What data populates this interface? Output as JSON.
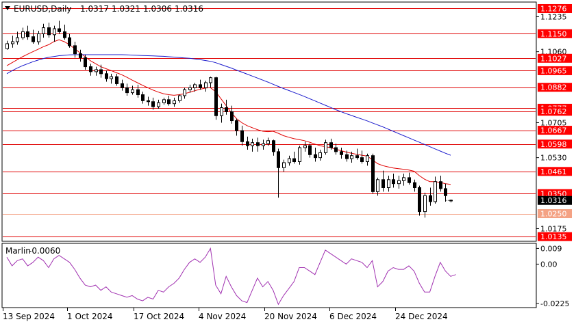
{
  "header": {
    "symbol": "EURUSD,Daily",
    "open": "1.0317",
    "high": "1.0321",
    "low": "1.0306",
    "close": "1.0316"
  },
  "indicator": {
    "name": "Marlin",
    "value": "-0.0060",
    "ticks": [
      "0.009",
      "0.00",
      "-0.0225"
    ]
  },
  "colors": {
    "background": "#ffffff",
    "level_line": "#e00000",
    "level_label_bg": "#ff0000",
    "level_label_light_bg": "#f4a284",
    "ma_fast": "#e00000",
    "ma_slow": "#1a1acc",
    "marlin_line": "#a030b0",
    "candle": "#000000",
    "price_label_bg": "#000000"
  },
  "chart_data": [
    {
      "type": "candlestick",
      "title": "EURUSD,Daily",
      "ylim": [
        1.0115,
        1.1305
      ],
      "x_tick_labels": [
        "13 Sep 2024",
        "1 Oct 2024",
        "17 Oct 2024",
        "4 Nov 2024",
        "20 Nov 2024",
        "6 Dec 2024",
        "24 Dec 2024"
      ],
      "y_tick_labels": [
        "1.1235",
        "1.1060",
        "1.0705",
        "1.0530",
        "1.0175"
      ],
      "levels_labels": [
        "1.1276",
        "1.1150",
        "1.1027",
        "1.0965",
        "1.0882",
        "1.0777",
        "1.0762",
        "1.0667",
        "1.0598",
        "1.0461",
        "1.0350",
        "1.0250",
        "1.0135"
      ],
      "levels": [
        {
          "value": 1.1276,
          "label": "1.1276",
          "style": "red"
        },
        {
          "value": 1.115,
          "label": "1.1150",
          "style": "red"
        },
        {
          "value": 1.1027,
          "label": "1.1027",
          "style": "red"
        },
        {
          "value": 1.0965,
          "label": "1.0965",
          "style": "red"
        },
        {
          "value": 1.0882,
          "label": "1.0882",
          "style": "red"
        },
        {
          "value": 1.0777,
          "label": "1.0777",
          "style": "red"
        },
        {
          "value": 1.0762,
          "label": "1.0762",
          "style": "red"
        },
        {
          "value": 1.0667,
          "label": "1.0667",
          "style": "red"
        },
        {
          "value": 1.0598,
          "label": "1.0598",
          "style": "red"
        },
        {
          "value": 1.0461,
          "label": "1.0461",
          "style": "red"
        },
        {
          "value": 1.035,
          "label": "1.0350",
          "style": "red"
        },
        {
          "value": 1.025,
          "label": "1.0250",
          "style": "light"
        },
        {
          "value": 1.0135,
          "label": "1.0135",
          "style": "red"
        }
      ],
      "current_price": 1.0316,
      "current_price_label": "1.0316",
      "ohlc": [
        [
          1.1075,
          1.1115,
          1.107,
          1.11
        ],
        [
          1.11,
          1.114,
          1.108,
          1.111
        ],
        [
          1.111,
          1.116,
          1.1095,
          1.113
        ],
        [
          1.113,
          1.118,
          1.112,
          1.116
        ],
        [
          1.116,
          1.119,
          1.112,
          1.1135
        ],
        [
          1.1135,
          1.117,
          1.11,
          1.111
        ],
        [
          1.111,
          1.1165,
          1.1095,
          1.115
        ],
        [
          1.115,
          1.12,
          1.113,
          1.118
        ],
        [
          1.118,
          1.1205,
          1.113,
          1.1145
        ],
        [
          1.1145,
          1.119,
          1.111,
          1.1175
        ],
        [
          1.1175,
          1.1215,
          1.115,
          1.116
        ],
        [
          1.116,
          1.1195,
          1.112,
          1.113
        ],
        [
          1.113,
          1.115,
          1.108,
          1.109
        ],
        [
          1.109,
          1.111,
          1.103,
          1.105
        ],
        [
          1.105,
          1.107,
          1.101,
          1.103
        ],
        [
          1.103,
          1.1045,
          1.097,
          1.0985
        ],
        [
          1.0985,
          1.1,
          1.094,
          1.096
        ],
        [
          1.096,
          1.0985,
          1.094,
          1.097
        ],
        [
          1.097,
          1.0995,
          1.093,
          1.095
        ],
        [
          1.095,
          1.0965,
          1.091,
          1.0925
        ],
        [
          1.0925,
          1.095,
          1.09,
          1.0935
        ],
        [
          1.0935,
          1.095,
          1.089,
          1.09
        ],
        [
          1.09,
          1.092,
          1.0865,
          1.088
        ],
        [
          1.088,
          1.09,
          1.084,
          1.0855
        ],
        [
          1.0855,
          1.089,
          1.0845,
          1.087
        ],
        [
          1.087,
          1.0895,
          1.083,
          1.0845
        ],
        [
          1.0845,
          1.086,
          1.08,
          1.0815
        ],
        [
          1.0815,
          1.0835,
          1.079,
          1.081
        ],
        [
          1.081,
          1.083,
          1.077,
          1.0785
        ],
        [
          1.0785,
          1.082,
          1.0775,
          1.0805
        ],
        [
          1.0805,
          1.083,
          1.0795,
          1.082
        ],
        [
          1.082,
          1.084,
          1.079,
          1.08
        ],
        [
          1.08,
          1.083,
          1.0785,
          1.0815
        ],
        [
          1.0815,
          1.0845,
          1.0805,
          1.084
        ],
        [
          1.084,
          1.088,
          1.0825,
          1.087
        ],
        [
          1.087,
          1.0895,
          1.0855,
          1.088
        ],
        [
          1.088,
          1.0905,
          1.086,
          1.0895
        ],
        [
          1.0895,
          1.092,
          1.087,
          1.088
        ],
        [
          1.088,
          1.0915,
          1.086,
          1.0905
        ],
        [
          1.0905,
          1.0935,
          1.088,
          1.093
        ],
        [
          1.093,
          1.0935,
          1.072,
          1.074
        ],
        [
          1.074,
          1.08,
          1.0705,
          1.078
        ],
        [
          1.078,
          1.082,
          1.0745,
          1.076
        ],
        [
          1.076,
          1.079,
          1.07,
          1.0715
        ],
        [
          1.0715,
          1.0725,
          1.064,
          1.0665
        ],
        [
          1.0665,
          1.069,
          1.059,
          1.061
        ],
        [
          1.061,
          1.0635,
          1.057,
          1.059
        ],
        [
          1.059,
          1.0625,
          1.056,
          1.0605
        ],
        [
          1.0605,
          1.063,
          1.056,
          1.059
        ],
        [
          1.059,
          1.062,
          1.057,
          1.06
        ],
        [
          1.06,
          1.063,
          1.059,
          1.0615
        ],
        [
          1.0615,
          1.062,
          1.054,
          1.056
        ],
        [
          1.056,
          1.0575,
          1.033,
          1.048
        ],
        [
          1.048,
          1.052,
          1.046,
          1.0505
        ],
        [
          1.0505,
          1.054,
          1.049,
          1.0525
        ],
        [
          1.0525,
          1.056,
          1.05,
          1.051
        ],
        [
          1.051,
          1.059,
          1.0495,
          1.058
        ],
        [
          1.058,
          1.061,
          1.056,
          1.059
        ],
        [
          1.059,
          1.06,
          1.053,
          1.0545
        ],
        [
          1.0545,
          1.058,
          1.051,
          1.053
        ],
        [
          1.053,
          1.057,
          1.0515,
          1.0555
        ],
        [
          1.0555,
          1.062,
          1.0545,
          1.0605
        ],
        [
          1.0605,
          1.0625,
          1.057,
          1.058
        ],
        [
          1.058,
          1.06,
          1.0545,
          1.056
        ],
        [
          1.056,
          1.058,
          1.0525,
          1.0545
        ],
        [
          1.0545,
          1.0565,
          1.051,
          1.0525
        ],
        [
          1.0525,
          1.056,
          1.0505,
          1.054
        ],
        [
          1.054,
          1.0575,
          1.052,
          1.053
        ],
        [
          1.053,
          1.0565,
          1.05,
          1.051
        ],
        [
          1.051,
          1.055,
          1.049,
          1.054
        ],
        [
          1.054,
          1.055,
          1.035,
          1.036
        ],
        [
          1.036,
          1.043,
          1.034,
          1.042
        ],
        [
          1.042,
          1.0465,
          1.036,
          1.038
        ],
        [
          1.038,
          1.044,
          1.036,
          1.042
        ],
        [
          1.042,
          1.045,
          1.038,
          1.04
        ],
        [
          1.04,
          1.044,
          1.0375,
          1.0415
        ],
        [
          1.0415,
          1.045,
          1.039,
          1.043
        ],
        [
          1.043,
          1.0455,
          1.0395,
          1.0405
        ],
        [
          1.0405,
          1.042,
          1.036,
          1.038
        ],
        [
          1.038,
          1.039,
          1.024,
          1.026
        ],
        [
          1.026,
          1.0355,
          1.023,
          1.034
        ],
        [
          1.034,
          1.038,
          1.029,
          1.031
        ],
        [
          1.031,
          1.0435,
          1.03,
          1.041
        ],
        [
          1.041,
          1.044,
          1.036,
          1.0375
        ],
        [
          1.0375,
          1.04,
          1.031,
          1.034
        ],
        [
          1.0317,
          1.0321,
          1.0306,
          1.0316
        ]
      ],
      "series": [
        {
          "values": [
            1.099,
            1.1005,
            1.102,
            1.1035,
            1.1048,
            1.106,
            1.1072,
            1.1085,
            1.1095,
            1.111,
            1.112,
            1.111,
            1.1095,
            1.1075,
            1.1055,
            1.1035,
            1.1015,
            1.1,
            1.0985,
            1.0975,
            1.0965,
            1.0955,
            1.0945,
            1.0932,
            1.0918,
            1.0905,
            1.0892,
            1.088,
            1.0868,
            1.0858,
            1.085,
            1.0845,
            1.0842,
            1.0845,
            1.085,
            1.0857,
            1.0865,
            1.0872,
            1.0878,
            1.088,
            1.086,
            1.0825,
            1.079,
            1.0755,
            1.0725,
            1.0705,
            1.069,
            1.068,
            1.067,
            1.0662,
            1.066,
            1.0662,
            1.0652,
            1.064,
            1.0632,
            1.0625,
            1.062,
            1.0615,
            1.0607,
            1.0598,
            1.059,
            1.0585,
            1.058,
            1.0572,
            1.0565,
            1.0558,
            1.0552,
            1.0547,
            1.0542,
            1.0538,
            1.052,
            1.05,
            1.049,
            1.0484,
            1.0478,
            1.0475,
            1.0472,
            1.0468,
            1.0462,
            1.044,
            1.0422,
            1.041,
            1.041,
            1.0406,
            1.04,
            1.0396
          ]
        },
        {
          "values": [
            1.095,
            1.0965,
            1.0978,
            1.099,
            1.1,
            1.101,
            1.1018,
            1.1026,
            1.1032,
            1.1036,
            1.104,
            1.1042,
            1.1044,
            1.1045,
            1.1045,
            1.1045,
            1.1045,
            1.1045,
            1.1045,
            1.1045,
            1.1045,
            1.1045,
            1.1045,
            1.1044,
            1.1043,
            1.1042,
            1.1041,
            1.104,
            1.1039,
            1.1038,
            1.1037,
            1.1035,
            1.1033,
            1.1031,
            1.1029,
            1.1027,
            1.1024,
            1.102,
            1.1016,
            1.1012,
            1.1005,
            1.0996,
            1.0987,
            1.0978,
            1.0968,
            1.0958,
            1.0948,
            1.0938,
            1.0928,
            1.0918,
            1.0908,
            1.0897,
            1.0886,
            1.0876,
            1.0866,
            1.0856,
            1.0846,
            1.0836,
            1.0825,
            1.0814,
            1.0803,
            1.0792,
            1.0781,
            1.077,
            1.076,
            1.075,
            1.0741,
            1.0732,
            1.0723,
            1.0714,
            1.0704,
            1.0694,
            1.0684,
            1.0673,
            1.0662,
            1.0651,
            1.064,
            1.0629,
            1.0618,
            1.0607,
            1.0596,
            1.0585,
            1.0574,
            1.0563,
            1.0552,
            1.0542
          ]
        }
      ]
    },
    {
      "type": "line",
      "title": "Marlin -0.0060",
      "ylim": [
        -0.0245,
        0.0115
      ],
      "y_tick_labels": [
        "0.009",
        "0.00",
        "-0.0225"
      ],
      "series": [
        {
          "values": [
            0.004,
            -0.001,
            0.002,
            0.003,
            -0.001,
            0.001,
            0.004,
            0.002,
            -0.002,
            0.003,
            0.005,
            0.003,
            0.001,
            -0.003,
            -0.008,
            -0.012,
            -0.013,
            -0.012,
            -0.015,
            -0.013,
            -0.016,
            -0.017,
            -0.018,
            -0.019,
            -0.018,
            -0.02,
            -0.021,
            -0.019,
            -0.02,
            -0.015,
            -0.016,
            -0.013,
            -0.011,
            -0.008,
            -0.003,
            0.001,
            0.003,
            0.001,
            0.004,
            0.009,
            -0.012,
            -0.017,
            -0.007,
            -0.013,
            -0.018,
            -0.021,
            -0.022,
            -0.015,
            -0.008,
            -0.013,
            -0.01,
            -0.015,
            -0.023,
            -0.018,
            -0.014,
            -0.01,
            -0.002,
            -0.002,
            -0.004,
            -0.006,
            0.001,
            0.008,
            0.006,
            0.004,
            0.002,
            0.0,
            0.003,
            0.002,
            0.001,
            -0.002,
            0.002,
            -0.013,
            -0.01,
            -0.004,
            -0.002,
            -0.003,
            -0.003,
            -0.001,
            -0.004,
            -0.011,
            -0.016,
            -0.016,
            -0.007,
            0.001,
            -0.004,
            -0.007,
            -0.006
          ]
        }
      ]
    }
  ]
}
